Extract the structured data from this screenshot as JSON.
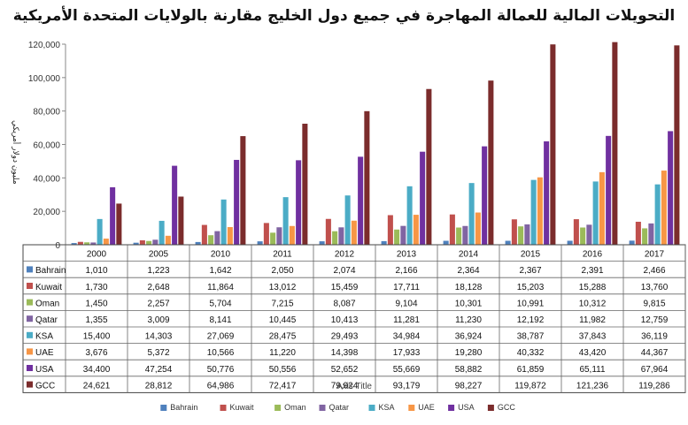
{
  "chart_data": {
    "type": "bar",
    "title": "التحويلات المالية للعمالة المهاجرة في جميع دول الخليج مقارنة بالولايات المتحدة الأمريكية",
    "xlabel": "Axis Title",
    "ylabel": "مليون دولار أمريكي",
    "ylim": [
      0,
      120000
    ],
    "yticks": [
      "0",
      "20,000",
      "40,000",
      "60,000",
      "80,000",
      "100,000",
      "120,000"
    ],
    "grid": false,
    "legend_position": "bottom",
    "categories": [
      "2000",
      "2005",
      "2010",
      "2011",
      "2012",
      "2013",
      "2014",
      "2015",
      "2016",
      "2017"
    ],
    "series": [
      {
        "name": "Bahrain",
        "color": "#4f81bd",
        "values": [
          1010,
          1223,
          1642,
          2050,
          2074,
          2166,
          2364,
          2367,
          2391,
          2466
        ],
        "labels": [
          "1,010",
          "1,223",
          "1,642",
          "2,050",
          "2,074",
          "2,166",
          "2,364",
          "2,367",
          "2,391",
          "2,466"
        ]
      },
      {
        "name": "Kuwait",
        "color": "#c0504d",
        "values": [
          1730,
          2648,
          11864,
          13012,
          15459,
          17711,
          18128,
          15203,
          15288,
          13760
        ],
        "labels": [
          "1,730",
          "2,648",
          "11,864",
          "13,012",
          "15,459",
          "17,711",
          "18,128",
          "15,203",
          "15,288",
          "13,760"
        ]
      },
      {
        "name": "Oman",
        "color": "#9bbb59",
        "values": [
          1450,
          2257,
          5704,
          7215,
          8087,
          9104,
          10301,
          10991,
          10312,
          9815
        ],
        "labels": [
          "1,450",
          "2,257",
          "5,704",
          "7,215",
          "8,087",
          "9,104",
          "10,301",
          "10,991",
          "10,312",
          "9,815"
        ]
      },
      {
        "name": "Qatar",
        "color": "#8064a2",
        "values": [
          1355,
          3009,
          8141,
          10445,
          10413,
          11281,
          11230,
          12192,
          11982,
          12759
        ],
        "labels": [
          "1,355",
          "3,009",
          "8,141",
          "10,445",
          "10,413",
          "11,281",
          "11,230",
          "12,192",
          "11,982",
          "12,759"
        ]
      },
      {
        "name": "KSA",
        "color": "#4bacc6",
        "values": [
          15400,
          14303,
          27069,
          28475,
          29493,
          34984,
          36924,
          38787,
          37843,
          36119
        ],
        "labels": [
          "15,400",
          "14,303",
          "27,069",
          "28,475",
          "29,493",
          "34,984",
          "36,924",
          "38,787",
          "37,843",
          "36,119"
        ]
      },
      {
        "name": "UAE",
        "color": "#f79646",
        "values": [
          3676,
          5372,
          10566,
          11220,
          14398,
          17933,
          19280,
          40332,
          43420,
          44367
        ],
        "labels": [
          "3,676",
          "5,372",
          "10,566",
          "11,220",
          "14,398",
          "17,933",
          "19,280",
          "40,332",
          "43,420",
          "44,367"
        ]
      },
      {
        "name": "USA",
        "color": "#7030a0",
        "values": [
          34400,
          47254,
          50776,
          50556,
          52652,
          55669,
          58882,
          61859,
          65111,
          67964
        ],
        "labels": [
          "34,400",
          "47,254",
          "50,776",
          "50,556",
          "52,652",
          "55,669",
          "58,882",
          "61,859",
          "65,111",
          "67,964"
        ]
      },
      {
        "name": "GCC",
        "color": "#7b2c2c",
        "values": [
          24621,
          28812,
          64986,
          72417,
          79924,
          93179,
          98227,
          119872,
          121236,
          119286
        ],
        "labels": [
          "24,621",
          "28,812",
          "64,986",
          "72,417",
          "79,924",
          "93,179",
          "98,227",
          "119,872",
          "121,236",
          "119,286"
        ]
      }
    ]
  }
}
